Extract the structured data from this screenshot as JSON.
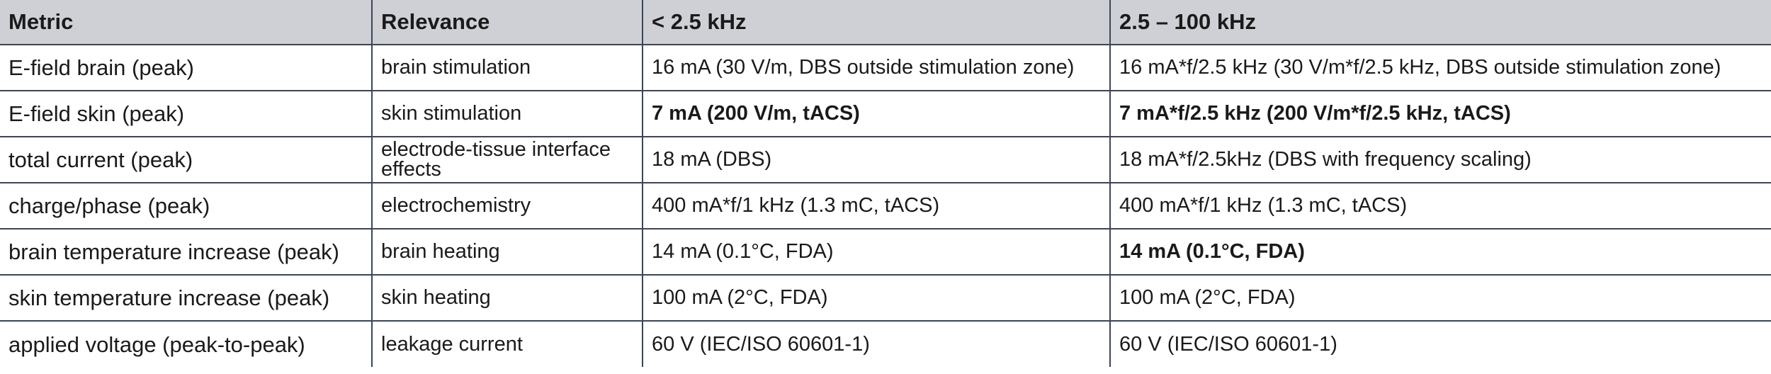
{
  "table": {
    "headers": [
      "Metric",
      "Relevance",
      "< 2.5 kHz",
      "2.5 – 100 kHz"
    ],
    "rows": [
      {
        "metric": "E-field brain (peak)",
        "relevance": "brain stimulation",
        "low_freq": "16 mA (30 V/m, DBS outside stimulation zone)",
        "high_freq": "16 mA*f/2.5 kHz (30 V/m*f/2.5 kHz, DBS outside stimulation zone)",
        "low_bold": false,
        "high_bold": false
      },
      {
        "metric": "E-field skin (peak)",
        "relevance": "skin stimulation",
        "low_freq": "7 mA (200 V/m, tACS)",
        "high_freq": "7 mA*f/2.5 kHz (200 V/m*f/2.5 kHz, tACS)",
        "low_bold": true,
        "high_bold": true
      },
      {
        "metric": "total current (peak)",
        "relevance": "electrode-tissue interface effects",
        "low_freq": "18 mA (DBS)",
        "high_freq": "18 mA*f/2.5kHz (DBS with frequency scaling)",
        "low_bold": false,
        "high_bold": false
      },
      {
        "metric": "charge/phase (peak)",
        "relevance": "electrochemistry",
        "low_freq": "400 mA*f/1 kHz (1.3 mC, tACS)",
        "high_freq": "400 mA*f/1 kHz (1.3 mC, tACS)",
        "low_bold": false,
        "high_bold": false
      },
      {
        "metric": "brain temperature increase (peak)",
        "relevance": "brain heating",
        "low_freq": "14 mA (0.1°C, FDA)",
        "high_freq": "14 mA (0.1°C, FDA)",
        "low_bold": false,
        "high_bold": true
      },
      {
        "metric": "skin temperature increase (peak)",
        "relevance": "skin heating",
        "low_freq": "100 mA (2°C, FDA)",
        "high_freq": "100 mA (2°C, FDA)",
        "low_bold": false,
        "high_bold": false
      },
      {
        "metric": "applied voltage (peak-to-peak)",
        "relevance": "leakage current",
        "low_freq": "60 V (IEC/ISO 60601-1)",
        "high_freq": "60 V (IEC/ISO 60601-1)",
        "low_bold": false,
        "high_bold": false
      }
    ]
  }
}
